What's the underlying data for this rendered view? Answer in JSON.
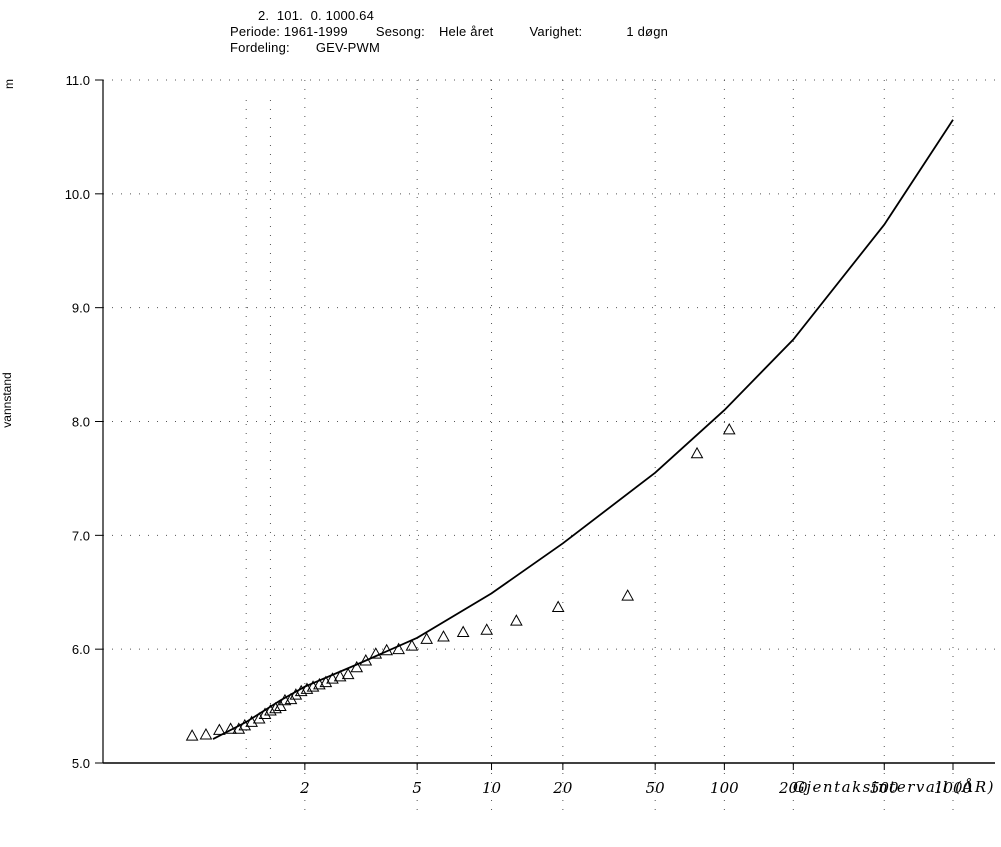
{
  "header": {
    "line1": "2.  101.  0. 1000.64",
    "periode_label": "Periode:",
    "periode_value": "1961-1999",
    "sesong_label": "Sesong:",
    "sesong_value": "Hele året",
    "varighet_label": "Varighet:",
    "varighet_value": "1 døgn",
    "fordeling_label": "Fordeling:",
    "fordeling_value": "GEV-PWM"
  },
  "chart_data": {
    "type": "scatter",
    "ylabel": "vannstand",
    "yunit": "m",
    "xlabel": "Gjentaksintervall (ÅR)",
    "x_scale": "gumbel-reduced-variate",
    "ylim": [
      5.0,
      11.0
    ],
    "xlim": [
      1.06,
      1600
    ],
    "y_ticks": [
      5.0,
      6.0,
      7.0,
      8.0,
      9.0,
      10.0,
      11.0
    ],
    "y_tick_labels": [
      "5.0",
      "6.0",
      "7.0",
      "8.0",
      "9.0",
      "10.0",
      "11.0"
    ],
    "x_ticks": [
      2,
      5,
      10,
      20,
      50,
      100,
      200,
      500,
      1000
    ],
    "x_tick_labels": [
      "2",
      "5",
      "10",
      "20",
      "50",
      "100",
      "200",
      "500",
      "1000"
    ],
    "grid": true,
    "series": [
      {
        "kind": "line",
        "x": [
          1.21,
          1.4,
          1.7,
          2,
          3,
          5,
          10,
          20,
          50,
          100,
          200,
          500,
          1000
        ],
        "y": [
          5.21,
          5.36,
          5.55,
          5.67,
          5.87,
          6.1,
          6.49,
          6.93,
          7.55,
          8.1,
          8.72,
          9.73,
          10.65
        ]
      },
      {
        "kind": "scatter",
        "marker": "triangle",
        "x": [
          1.13,
          1.18,
          1.24,
          1.3,
          1.35,
          1.39,
          1.44,
          1.5,
          1.55,
          1.6,
          1.65,
          1.7,
          1.75,
          1.82,
          1.88,
          1.95,
          2.03,
          2.12,
          2.22,
          2.33,
          2.45,
          2.6,
          2.77,
          2.97,
          3.2,
          3.48,
          3.82,
          4.24,
          4.77,
          5.45,
          6.36,
          7.64,
          9.55,
          12.7,
          19.1,
          38.0,
          76.0
        ],
        "y": [
          5.24,
          5.25,
          5.29,
          5.3,
          5.3,
          5.33,
          5.36,
          5.39,
          5.43,
          5.46,
          5.48,
          5.5,
          5.55,
          5.56,
          5.6,
          5.63,
          5.65,
          5.67,
          5.69,
          5.71,
          5.74,
          5.76,
          5.78,
          5.84,
          5.9,
          5.96,
          5.99,
          6.0,
          6.03,
          6.09,
          6.11,
          6.15,
          6.17,
          6.25,
          6.37,
          6.47,
          7.72
        ]
      }
    ],
    "extra_point": {
      "x": 105,
      "y": 7.93
    }
  }
}
